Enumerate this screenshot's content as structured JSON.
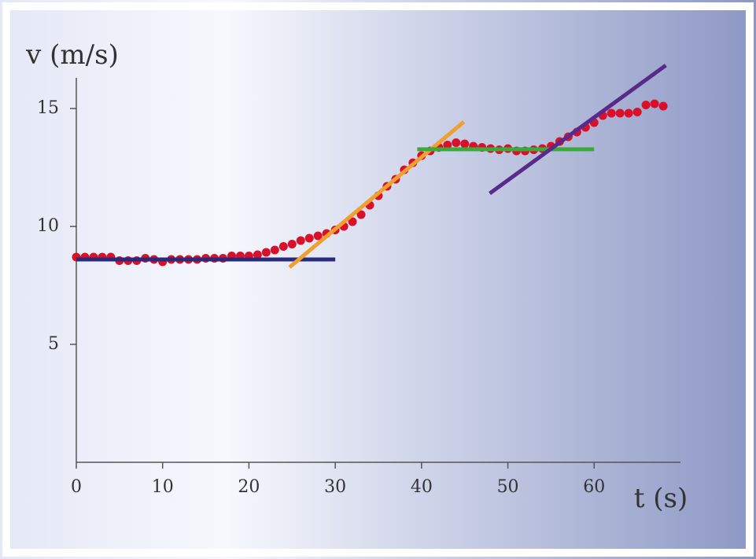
{
  "chart_data": {
    "type": "scatter",
    "x_label": "t (s)",
    "y_label": "v (m/s)",
    "x": [
      0,
      1,
      2,
      3,
      4,
      5,
      6,
      7,
      8,
      9,
      10,
      11,
      12,
      13,
      14,
      15,
      16,
      17,
      18,
      19,
      20,
      21,
      22,
      23,
      24,
      25,
      26,
      27,
      28,
      29,
      30,
      31,
      32,
      33,
      34,
      35,
      36,
      37,
      38,
      39,
      40,
      41,
      42,
      43,
      44,
      45,
      46,
      47,
      48,
      49,
      50,
      51,
      52,
      53,
      54,
      55,
      56,
      57,
      58,
      59,
      60,
      61,
      62,
      63,
      64,
      65,
      66,
      67,
      68
    ],
    "values": [
      8.7,
      8.7,
      8.7,
      8.7,
      8.7,
      8.55,
      8.55,
      8.55,
      8.65,
      8.6,
      8.5,
      8.6,
      8.6,
      8.6,
      8.6,
      8.65,
      8.65,
      8.65,
      8.75,
      8.75,
      8.75,
      8.8,
      8.9,
      9.0,
      9.15,
      9.25,
      9.4,
      9.5,
      9.6,
      9.7,
      9.85,
      10.0,
      10.2,
      10.5,
      10.9,
      11.3,
      11.7,
      12.0,
      12.4,
      12.7,
      13.0,
      13.2,
      13.35,
      13.45,
      13.55,
      13.5,
      13.4,
      13.35,
      13.3,
      13.25,
      13.3,
      13.2,
      13.2,
      13.25,
      13.3,
      13.4,
      13.6,
      13.8,
      14.0,
      14.2,
      14.4,
      14.7,
      14.8,
      14.8,
      14.8,
      14.85,
      15.15,
      15.2,
      15.1
    ],
    "color": "#d8102a",
    "lines": [
      {
        "x": [
          0,
          30
        ],
        "values": [
          8.6,
          8.6
        ],
        "color": "#2a2a7a"
      },
      {
        "x": [
          24.7,
          44.9
        ],
        "values": [
          8.27,
          14.43
        ],
        "color": "#f0a030"
      },
      {
        "x": [
          39.5,
          60
        ],
        "values": [
          13.27,
          13.27
        ],
        "color": "#3aaa3a"
      },
      {
        "x": [
          47.9,
          68.3
        ],
        "values": [
          11.4,
          16.83
        ],
        "color": "#5a2a8a"
      }
    ],
    "xlim": [
      0,
      70
    ],
    "ylim": [
      0,
      16.3
    ],
    "xticks": [
      0,
      10,
      20,
      30,
      40,
      50,
      60
    ],
    "yticks": [
      5,
      10,
      15
    ]
  }
}
